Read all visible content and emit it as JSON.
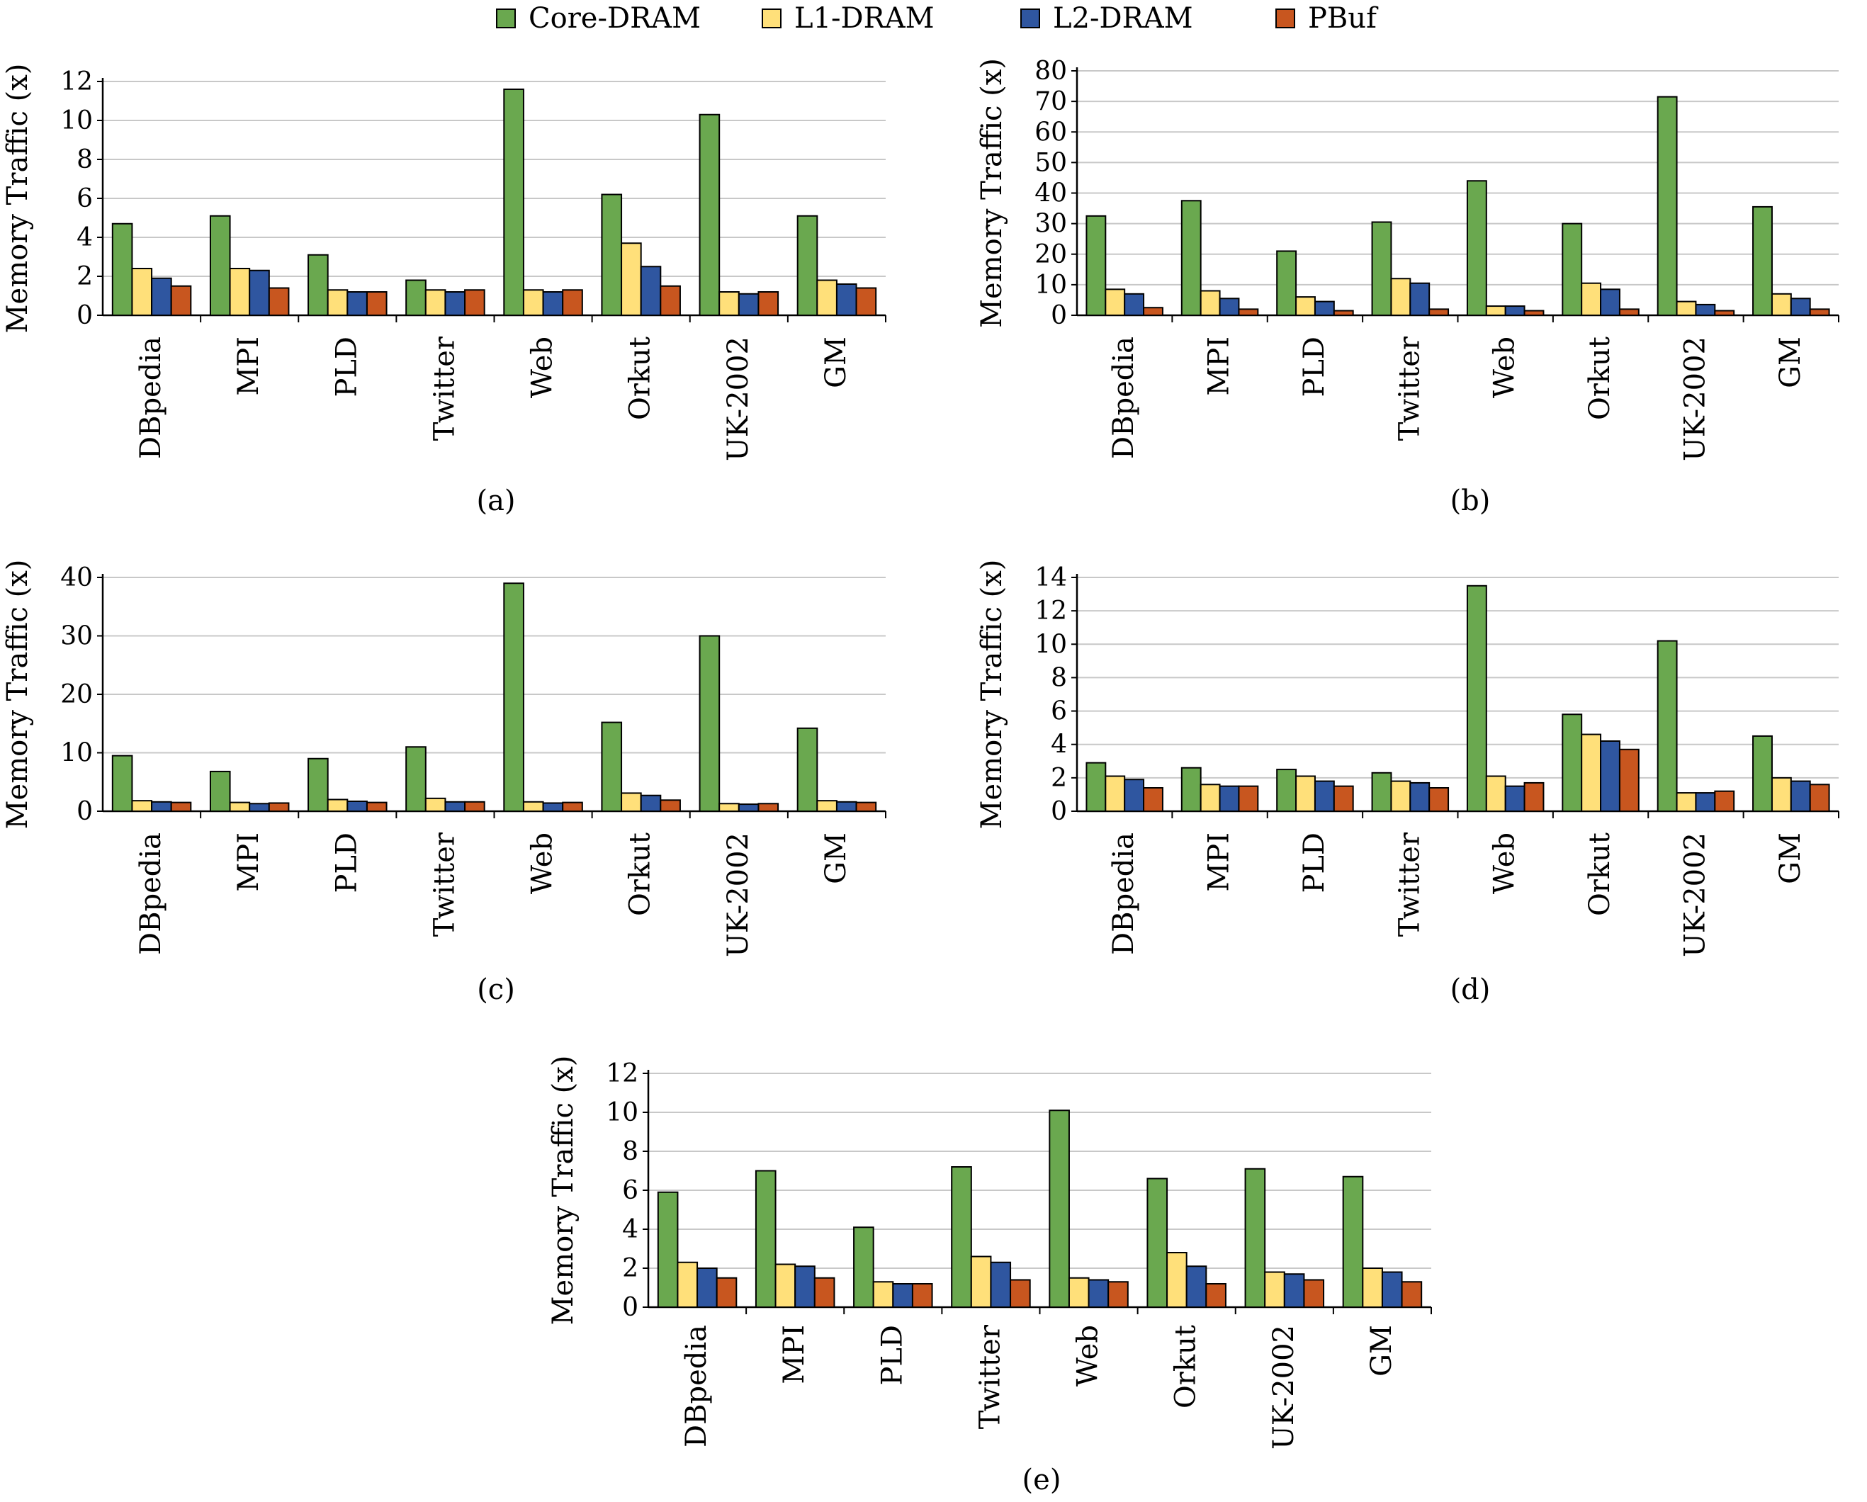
{
  "legend": [
    {
      "name": "Core-DRAM",
      "color": "#6aa84f"
    },
    {
      "name": "L1-DRAM",
      "color": "#ffe07a"
    },
    {
      "name": "L2-DRAM",
      "color": "#2f56a0"
    },
    {
      "name": "PBuf",
      "color": "#c8561f"
    }
  ],
  "chart_data": [
    {
      "type": "bar",
      "caption": "(a)",
      "ylabel": "Memory Traffic (x)",
      "ylim": [
        0,
        12
      ],
      "yticks": [
        0,
        2,
        4,
        6,
        8,
        10,
        12
      ],
      "grid": true,
      "categories": [
        "DBpedia",
        "MPI",
        "PLD",
        "Twitter",
        "Web",
        "Orkut",
        "UK-2002",
        "GM"
      ],
      "series": [
        {
          "name": "Core-DRAM",
          "values": [
            4.7,
            5.1,
            3.1,
            1.8,
            11.6,
            6.2,
            10.3,
            5.1
          ]
        },
        {
          "name": "L1-DRAM",
          "values": [
            2.4,
            2.4,
            1.3,
            1.3,
            1.3,
            3.7,
            1.2,
            1.8
          ]
        },
        {
          "name": "L2-DRAM",
          "values": [
            1.9,
            2.3,
            1.2,
            1.2,
            1.2,
            2.5,
            1.1,
            1.6
          ]
        },
        {
          "name": "PBuf",
          "values": [
            1.5,
            1.4,
            1.2,
            1.3,
            1.3,
            1.5,
            1.2,
            1.4
          ]
        }
      ]
    },
    {
      "type": "bar",
      "caption": "(b)",
      "ylabel": "Memory Traffic (x)",
      "ylim": [
        0,
        80
      ],
      "yticks": [
        0,
        10,
        20,
        30,
        40,
        50,
        60,
        70,
        80
      ],
      "grid": true,
      "categories": [
        "DBpedia",
        "MPI",
        "PLD",
        "Twitter",
        "Web",
        "Orkut",
        "UK-2002",
        "GM"
      ],
      "series": [
        {
          "name": "Core-DRAM",
          "values": [
            32.5,
            37.5,
            21,
            30.5,
            44,
            30,
            71.5,
            35.5
          ]
        },
        {
          "name": "L1-DRAM",
          "values": [
            8.5,
            8,
            6,
            12,
            3,
            10.5,
            4.5,
            7
          ]
        },
        {
          "name": "L2-DRAM",
          "values": [
            7,
            5.5,
            4.5,
            10.5,
            3,
            8.5,
            3.5,
            5.5
          ]
        },
        {
          "name": "PBuf",
          "values": [
            2.5,
            2,
            1.5,
            2,
            1.5,
            2,
            1.5,
            2
          ]
        }
      ]
    },
    {
      "type": "bar",
      "caption": "(c)",
      "ylabel": "Memory Traffic (x)",
      "ylim": [
        0,
        40
      ],
      "yticks": [
        0,
        10,
        20,
        30,
        40
      ],
      "grid": true,
      "categories": [
        "DBpedia",
        "MPI",
        "PLD",
        "Twitter",
        "Web",
        "Orkut",
        "UK-2002",
        "GM"
      ],
      "series": [
        {
          "name": "Core-DRAM",
          "values": [
            9.5,
            6.8,
            9,
            11,
            39,
            15.2,
            30,
            14.2
          ]
        },
        {
          "name": "L1-DRAM",
          "values": [
            1.8,
            1.5,
            2,
            2.2,
            1.6,
            3.1,
            1.3,
            1.8
          ]
        },
        {
          "name": "L2-DRAM",
          "values": [
            1.6,
            1.3,
            1.7,
            1.6,
            1.4,
            2.7,
            1.2,
            1.6
          ]
        },
        {
          "name": "PBuf",
          "values": [
            1.5,
            1.4,
            1.5,
            1.6,
            1.5,
            1.9,
            1.3,
            1.5
          ]
        }
      ]
    },
    {
      "type": "bar",
      "caption": "(d)",
      "ylabel": "Memory Traffic (x)",
      "ylim": [
        0,
        14
      ],
      "yticks": [
        0,
        2,
        4,
        6,
        8,
        10,
        12,
        14
      ],
      "grid": true,
      "categories": [
        "DBpedia",
        "MPI",
        "PLD",
        "Twitter",
        "Web",
        "Orkut",
        "UK-2002",
        "GM"
      ],
      "series": [
        {
          "name": "Core-DRAM",
          "values": [
            2.9,
            2.6,
            2.5,
            2.3,
            13.5,
            5.8,
            10.2,
            4.5
          ]
        },
        {
          "name": "L1-DRAM",
          "values": [
            2.1,
            1.6,
            2.1,
            1.8,
            2.1,
            4.6,
            1.1,
            2
          ]
        },
        {
          "name": "L2-DRAM",
          "values": [
            1.9,
            1.5,
            1.8,
            1.7,
            1.5,
            4.2,
            1.1,
            1.8
          ]
        },
        {
          "name": "PBuf",
          "values": [
            1.4,
            1.5,
            1.5,
            1.4,
            1.7,
            3.7,
            1.2,
            1.6
          ]
        }
      ]
    },
    {
      "type": "bar",
      "caption": "(e)",
      "ylabel": "Memory Traffic (x)",
      "ylim": [
        0,
        12
      ],
      "yticks": [
        0,
        2,
        4,
        6,
        8,
        10,
        12
      ],
      "grid": true,
      "categories": [
        "DBpedia",
        "MPI",
        "PLD",
        "Twitter",
        "Web",
        "Orkut",
        "UK-2002",
        "GM"
      ],
      "series": [
        {
          "name": "Core-DRAM",
          "values": [
            5.9,
            7,
            4.1,
            7.2,
            10.1,
            6.6,
            7.1,
            6.7
          ]
        },
        {
          "name": "L1-DRAM",
          "values": [
            2.3,
            2.2,
            1.3,
            2.6,
            1.5,
            2.8,
            1.8,
            2
          ]
        },
        {
          "name": "L2-DRAM",
          "values": [
            2,
            2.1,
            1.2,
            2.3,
            1.4,
            2.1,
            1.7,
            1.8
          ]
        },
        {
          "name": "PBuf",
          "values": [
            1.5,
            1.5,
            1.2,
            1.4,
            1.3,
            1.2,
            1.4,
            1.3
          ]
        }
      ]
    }
  ]
}
